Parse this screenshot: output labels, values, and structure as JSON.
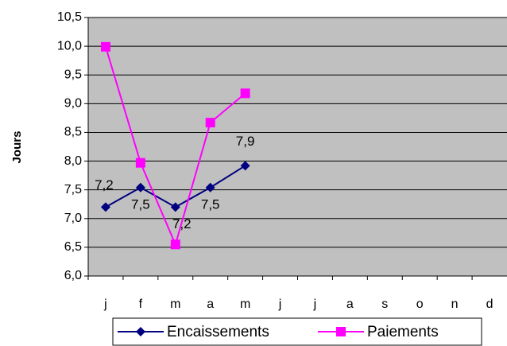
{
  "chart_data": {
    "type": "line",
    "y_label": "Jours",
    "categories": [
      "j",
      "f",
      "m",
      "a",
      "m",
      "j",
      "j",
      "a",
      "s",
      "o",
      "n",
      "d"
    ],
    "series": [
      {
        "name": "Encaissements",
        "color": "#000080",
        "marker": "diamond",
        "values": [
          7.2,
          7.54,
          7.2,
          7.54,
          7.92,
          null,
          null,
          null,
          null,
          null,
          null,
          null
        ],
        "value_labels": [
          "7,2",
          "7,5",
          "7,2",
          "7,5",
          "7,9",
          null,
          null,
          null,
          null,
          null,
          null,
          null
        ]
      },
      {
        "name": "Paiements",
        "color": "#ff00ff",
        "marker": "square",
        "values": [
          9.99,
          7.97,
          6.55,
          8.67,
          9.18,
          null,
          null,
          null,
          null,
          null,
          null,
          null
        ]
      }
    ],
    "ylim": [
      6.0,
      10.5
    ],
    "yticks": [
      {
        "value": 6.0,
        "label": "6,0"
      },
      {
        "value": 6.5,
        "label": "6,5"
      },
      {
        "value": 7.0,
        "label": "7,0"
      },
      {
        "value": 7.5,
        "label": "7,5"
      },
      {
        "value": 8.0,
        "label": "8,0"
      },
      {
        "value": 8.5,
        "label": "8,5"
      },
      {
        "value": 9.0,
        "label": "9,0"
      },
      {
        "value": 9.5,
        "label": "9,5"
      },
      {
        "value": 10.0,
        "label": "10,0"
      },
      {
        "value": 10.5,
        "label": "10,5"
      }
    ],
    "grid": true,
    "plot_background": "#c0c0c0",
    "legend": "bottom"
  }
}
